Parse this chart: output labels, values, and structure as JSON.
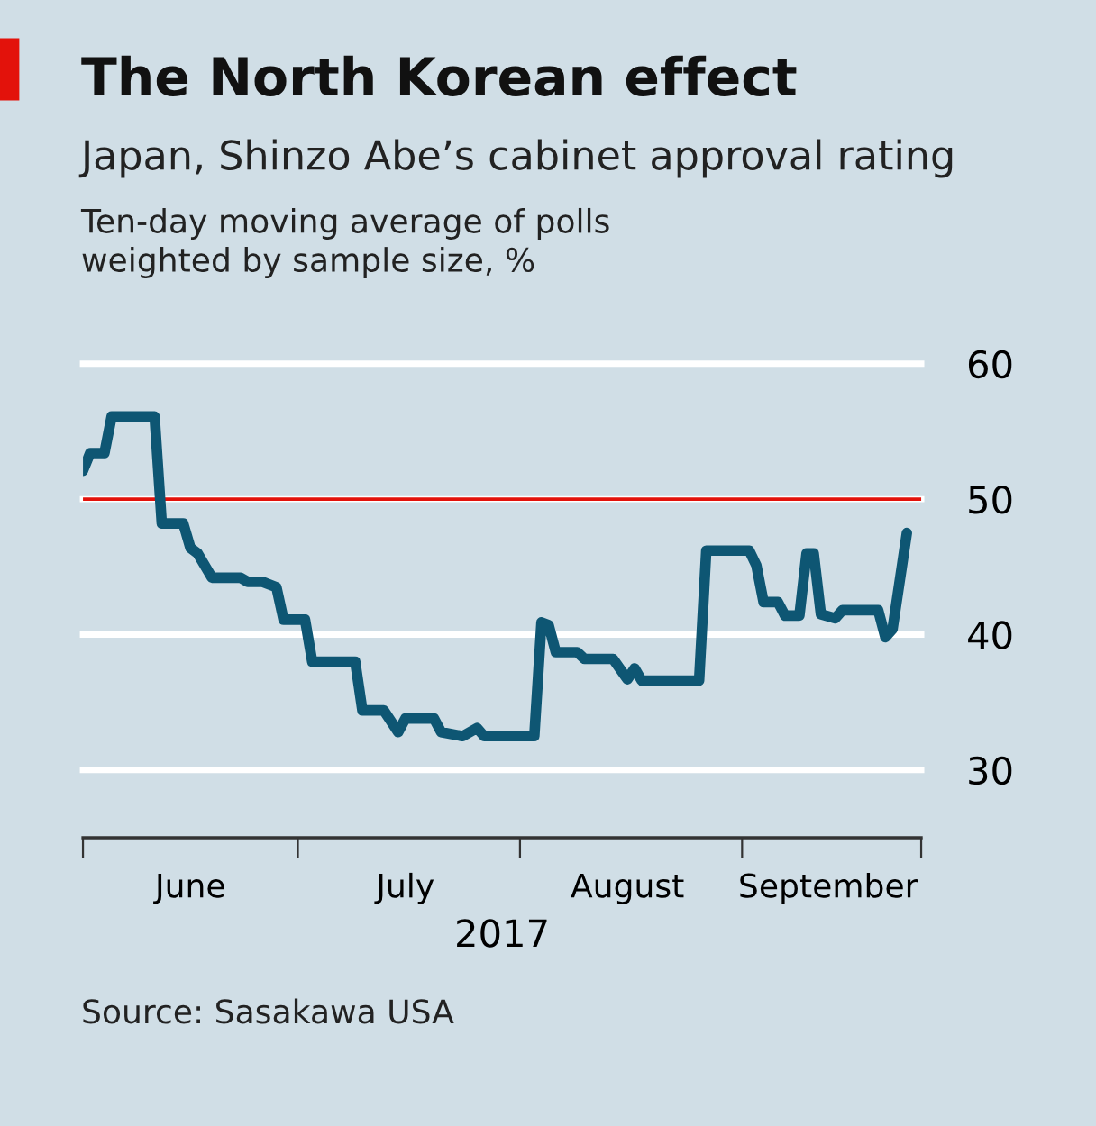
{
  "chart_data": {
    "type": "line",
    "title": "The North Korean effect",
    "subtitle": "Japan, Shinzo Abe’s cabinet approval rating",
    "ylabel": "Ten-day moving average of polls\nweighted by sample size, %",
    "xlabel": "2017",
    "annotations": [
      "Source: Sasakawa USA"
    ],
    "x": [
      "2017-06-01",
      "2017-06-02",
      "2017-06-04",
      "2017-06-05",
      "2017-06-11",
      "2017-06-12",
      "2017-06-15",
      "2017-06-16",
      "2017-06-17",
      "2017-06-19",
      "2017-06-23",
      "2017-06-24",
      "2017-06-26",
      "2017-06-28",
      "2017-06-29",
      "2017-07-02",
      "2017-07-03",
      "2017-07-09",
      "2017-07-10",
      "2017-07-13",
      "2017-07-15",
      "2017-07-16",
      "2017-07-20",
      "2017-07-21",
      "2017-07-24",
      "2017-07-26",
      "2017-07-27",
      "2017-08-03",
      "2017-08-04",
      "2017-08-05",
      "2017-08-06",
      "2017-08-09",
      "2017-08-10",
      "2017-08-14",
      "2017-08-16",
      "2017-08-17",
      "2017-08-18",
      "2017-08-26",
      "2017-08-27",
      "2017-09-02",
      "2017-09-03",
      "2017-09-04",
      "2017-09-06",
      "2017-09-07",
      "2017-09-09",
      "2017-09-10",
      "2017-09-11",
      "2017-09-12",
      "2017-09-14",
      "2017-09-15",
      "2017-09-20",
      "2017-09-21",
      "2017-09-22",
      "2017-09-24"
    ],
    "series": [
      {
        "color": "#0e5673",
        "values": [
          52.1,
          53.4,
          53.4,
          56.1,
          56.1,
          48.2,
          48.2,
          46.4,
          46.0,
          44.2,
          44.2,
          43.9,
          43.9,
          43.5,
          41.1,
          41.1,
          38.0,
          38.0,
          34.4,
          34.4,
          32.8,
          33.8,
          33.8,
          32.8,
          32.5,
          33.1,
          32.5,
          32.5,
          40.9,
          40.7,
          38.7,
          38.7,
          38.2,
          38.2,
          36.7,
          37.5,
          36.6,
          36.6,
          46.2,
          46.2,
          45.1,
          42.4,
          42.4,
          41.4,
          41.4,
          46.0,
          46.0,
          41.5,
          41.2,
          41.8,
          41.8,
          39.8,
          40.4,
          47.5
        ]
      }
    ],
    "xlim": [
      "2017-06-01",
      "2017-09-26"
    ],
    "xticks": [
      {
        "value": "2017-06-01",
        "label": null
      },
      {
        "value": "2017-06-16",
        "label": "June"
      },
      {
        "value": "2017-07-01",
        "label": null
      },
      {
        "value": "2017-07-16",
        "label": "July"
      },
      {
        "value": "2017-08-01",
        "label": null
      },
      {
        "value": "2017-08-16",
        "label": "August"
      },
      {
        "value": "2017-09-01",
        "label": null
      },
      {
        "value": "2017-09-13",
        "label": "September"
      },
      {
        "value": "2017-09-26",
        "label": null
      }
    ],
    "ylim": [
      25,
      60
    ],
    "yticks": [
      30,
      40,
      50,
      60
    ],
    "grid": "y",
    "ref_lines": [
      {
        "axis": "y",
        "value": 50,
        "color": "#e3120b"
      }
    ],
    "line_style": "solid",
    "marker": "none",
    "legend": false
  }
}
